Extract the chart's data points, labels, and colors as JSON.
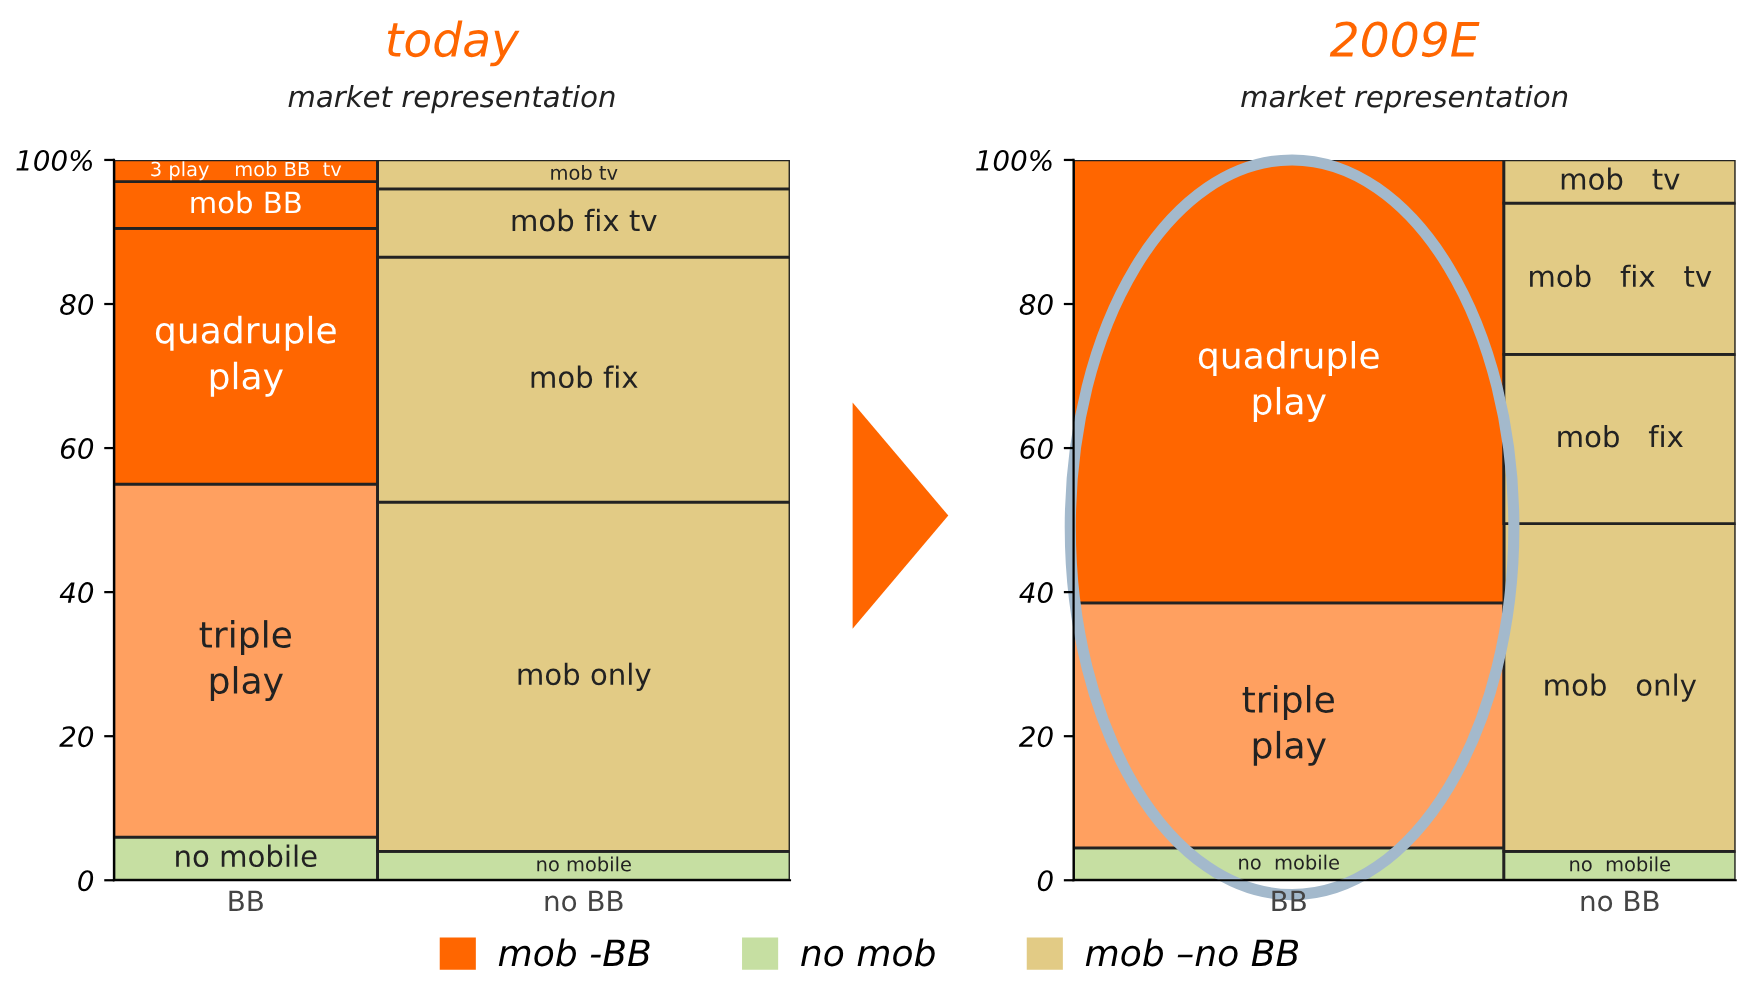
{
  "chart_data": [
    {
      "type": "bar",
      "stacked": true,
      "title": "today",
      "subtitle": "market representation",
      "categories": [
        "BB",
        "no BB"
      ],
      "ylim": [
        0,
        100
      ],
      "yticks": [
        0,
        20,
        40,
        60,
        80,
        {
          "value": 100,
          "label": "100%"
        }
      ],
      "grid": false,
      "legend": "bottom",
      "series": [
        {
          "name": "no mob",
          "color": "#c6dfa2",
          "values": [
            6,
            4
          ],
          "value_labels": [
            "no mobile",
            "no mobile"
          ]
        },
        {
          "colors": [
            "#ffa060",
            "#e2cb85"
          ],
          "values": [
            49,
            48.5
          ],
          "value_labels": [
            "triple\nplay",
            "mob only"
          ]
        },
        {
          "colors": [
            "#ff6600",
            "#e2cb85"
          ],
          "values": [
            35.5,
            34
          ],
          "value_labels": [
            "quadruple\nplay",
            "mob fix"
          ]
        },
        {
          "colors": [
            "#ff6600",
            "#e2cb85"
          ],
          "values": [
            6.5,
            9.5
          ],
          "value_labels": [
            "mob BB",
            "mob fix tv"
          ]
        },
        {
          "colors": [
            "#ff6600",
            "#e2cb85"
          ],
          "values": [
            3,
            4
          ],
          "value_labels": [
            "3 play    mob BB  tv",
            "mob tv"
          ]
        },
        {
          "name": "mob -BB",
          "color": "#ff6600",
          "values": [
            null,
            null
          ]
        },
        {
          "name": "mob –no BB",
          "color": "#e2cb85",
          "values": [
            null,
            null
          ]
        }
      ]
    },
    {
      "type": "bar",
      "stacked": true,
      "title": "2009E",
      "subtitle": "market representation",
      "categories": [
        "BB",
        "no BB"
      ],
      "ylim": [
        0,
        100
      ],
      "yticks": [
        0,
        20,
        40,
        60,
        80,
        {
          "value": 100,
          "label": "100%"
        }
      ],
      "grid": false,
      "series": [
        {
          "colors": [
            "#c6dfa2",
            "#c6dfa2"
          ],
          "values": [
            4.5,
            4
          ],
          "value_labels": [
            "no  mobile",
            "no  mobile"
          ]
        },
        {
          "colors": [
            "#ffa060",
            "#e2cb85"
          ],
          "values": [
            34,
            45.5
          ],
          "value_labels": [
            "triple\nplay",
            "mob   only"
          ]
        },
        {
          "colors": [
            "#ff6600",
            "#e2cb85"
          ],
          "values": [
            61.5,
            23.5
          ],
          "value_labels": [
            "quadruple\nplay",
            "mob   fix"
          ]
        },
        {
          "colors": [
            null,
            "#e2cb85"
          ],
          "values": [
            null,
            21
          ],
          "value_labels": [
            null,
            "mob   fix   tv"
          ]
        },
        {
          "colors": [
            null,
            "#e2cb85"
          ],
          "values": [
            null,
            6
          ],
          "value_labels": [
            null,
            "mob   tv"
          ]
        }
      ]
    }
  ]
}
